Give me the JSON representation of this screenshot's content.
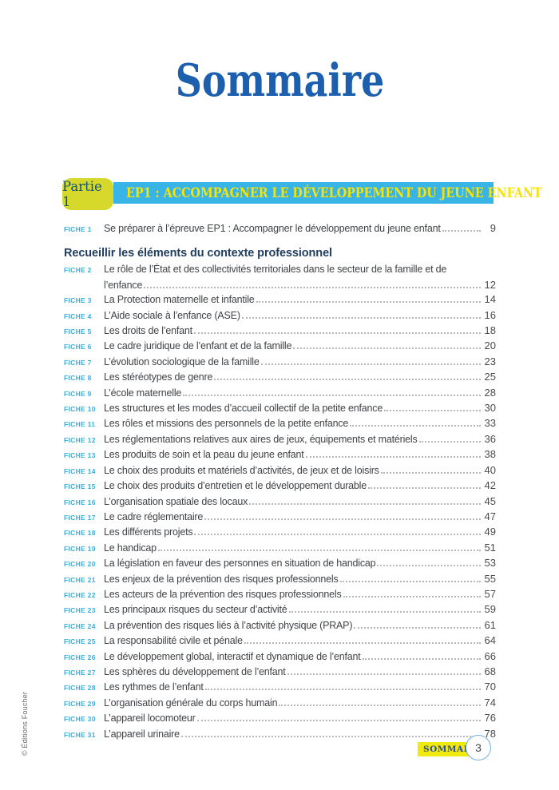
{
  "page": {
    "title": "Sommaire",
    "credit": "© Éditions Foucher",
    "footer": {
      "badge_label": "SOMMAIRE",
      "page_number": "3"
    }
  },
  "part": {
    "badge_label": "Partie 1",
    "banner_title": "EP1 : ACCOMPAGNER LE DÉVELOPPEMENT DU JEUNE ENFANT"
  },
  "colors": {
    "title_blue": "#1c5fae",
    "banner_cyan": "#38b5e6",
    "banner_text_yellow": "#f6e409",
    "badge_green": "#d6d92b",
    "badge_text_blue": "#0f5380",
    "fiche_cyan": "#35b0e2",
    "heading_navy": "#203e5f",
    "body_text": "#3f4347",
    "page_num_gray": "#4b4b4b",
    "leader_gray": "#9b9fa3",
    "footer_badge_yellow": "#efe90e",
    "footer_badge_text": "#2a4e9d",
    "circle_border_blue": "#74aede",
    "credit_gray": "#6a6a6a"
  },
  "toc": {
    "items": [
      {
        "label": "FICHE 1",
        "lines": [
          "Se préparer à l’épreuve EP1 : Accompagner le développement du jeune enfant"
        ],
        "page": "9"
      },
      {
        "heading": "Recueillir les éléments du contexte professionnel"
      },
      {
        "label": "FICHE 2",
        "lines": [
          "Le rôle de l’État et des collectivités territoriales dans le secteur de la famille et de",
          "l’enfance"
        ],
        "page": "12"
      },
      {
        "label": "FICHE 3",
        "lines": [
          "La Protection maternelle et infantile"
        ],
        "page": "14"
      },
      {
        "label": "FICHE 4",
        "lines": [
          "L’Aide sociale à l’enfance (ASE)"
        ],
        "page": "16"
      },
      {
        "label": "FICHE 5",
        "lines": [
          "Les droits de l’enfant"
        ],
        "page": "18"
      },
      {
        "label": "FICHE 6",
        "lines": [
          "Le cadre juridique de l’enfant et de la famille"
        ],
        "page": "20"
      },
      {
        "label": "FICHE 7",
        "lines": [
          "L’évolution sociologique de la famille"
        ],
        "page": "23"
      },
      {
        "label": "FICHE 8",
        "lines": [
          "Les stéréotypes de genre"
        ],
        "page": "25"
      },
      {
        "label": "FICHE 9",
        "lines": [
          "L’école maternelle"
        ],
        "page": "28"
      },
      {
        "label": "FICHE 10",
        "lines": [
          "Les structures et les modes d’accueil collectif de la petite enfance"
        ],
        "page": "30"
      },
      {
        "label": "FICHE 11",
        "lines": [
          "Les rôles et missions des personnels de la petite enfance"
        ],
        "page": "33"
      },
      {
        "label": "FICHE 12",
        "lines": [
          "Les réglementations relatives aux aires de jeux, équipements et matériels"
        ],
        "page": "36"
      },
      {
        "label": "FICHE 13",
        "lines": [
          "Les produits de soin et la peau du jeune enfant"
        ],
        "page": "38"
      },
      {
        "label": "FICHE 14",
        "lines": [
          "Le choix des produits et matériels d’activités, de jeux et de loisirs"
        ],
        "page": "40"
      },
      {
        "label": "FICHE 15",
        "lines": [
          "Le choix des produits d’entretien et le développement durable"
        ],
        "page": "42"
      },
      {
        "label": "FICHE 16",
        "lines": [
          "L’organisation spatiale des locaux"
        ],
        "page": "45"
      },
      {
        "label": "FICHE 17",
        "lines": [
          "Le cadre réglementaire"
        ],
        "page": "47"
      },
      {
        "label": "FICHE 18",
        "lines": [
          "Les différents projets"
        ],
        "page": "49"
      },
      {
        "label": "FICHE 19",
        "lines": [
          "Le handicap"
        ],
        "page": "51"
      },
      {
        "label": "FICHE 20",
        "lines": [
          "La législation en faveur des personnes en situation de handicap"
        ],
        "page": "53"
      },
      {
        "label": "FICHE 21",
        "lines": [
          "Les enjeux de la prévention des risques professionnels"
        ],
        "page": "55"
      },
      {
        "label": "FICHE 22",
        "lines": [
          "Les acteurs de la prévention des risques professionnels"
        ],
        "page": "57"
      },
      {
        "label": "FICHE 23",
        "lines": [
          "Les principaux risques du secteur d’activité"
        ],
        "page": "59"
      },
      {
        "label": "FICHE 24",
        "lines": [
          "La prévention des risques liés à l’activité physique (PRAP)"
        ],
        "page": "61"
      },
      {
        "label": "FICHE 25",
        "lines": [
          "La responsabilité civile et pénale"
        ],
        "page": "64"
      },
      {
        "label": "FICHE 26",
        "lines": [
          "Le développement global, interactif et dynamique de l’enfant"
        ],
        "page": "66"
      },
      {
        "label": "FICHE 27",
        "lines": [
          "Les sphères du développement de l’enfant"
        ],
        "page": "68"
      },
      {
        "label": "FICHE 28",
        "lines": [
          "Les rythmes de l’enfant"
        ],
        "page": "70"
      },
      {
        "label": "FICHE 29",
        "lines": [
          "L’organisation générale du corps humain"
        ],
        "page": "74"
      },
      {
        "label": "FICHE 30",
        "lines": [
          "L’appareil locomoteur"
        ],
        "page": "76"
      },
      {
        "label": "FICHE 31",
        "lines": [
          "L’appareil urinaire"
        ],
        "page": "78"
      }
    ]
  }
}
